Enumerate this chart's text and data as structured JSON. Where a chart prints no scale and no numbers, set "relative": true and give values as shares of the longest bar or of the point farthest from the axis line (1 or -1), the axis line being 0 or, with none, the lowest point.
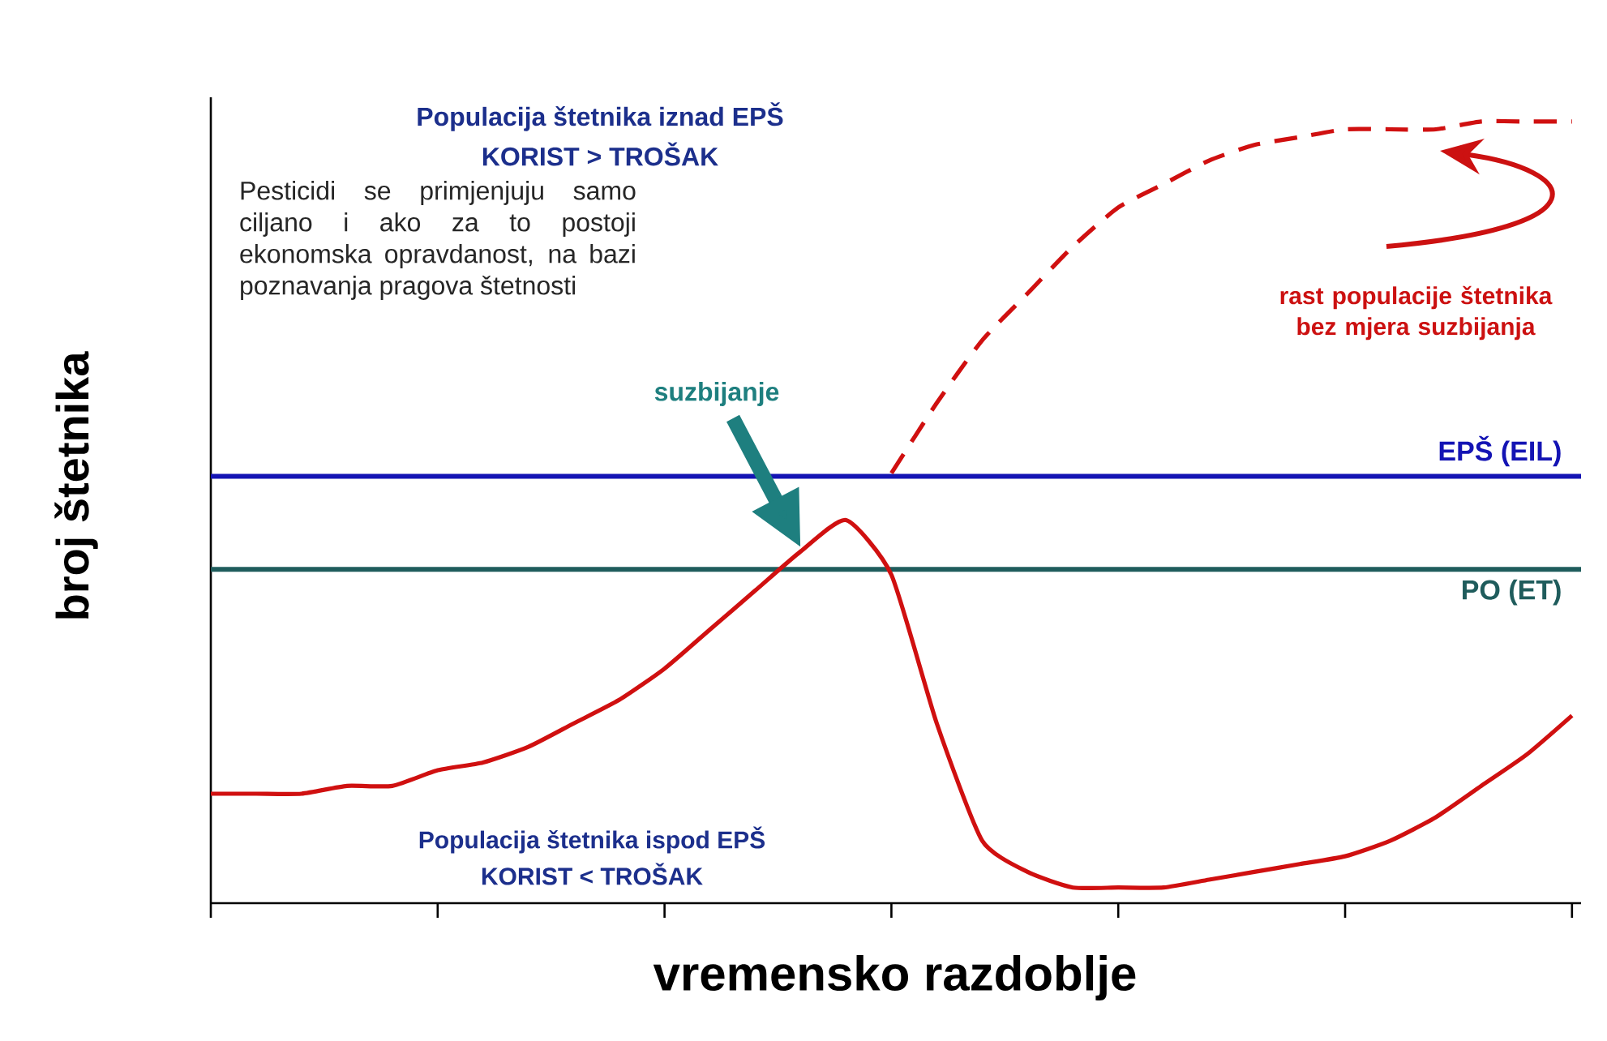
{
  "chart_data": {
    "type": "line",
    "relative": true,
    "xlabel": "vremensko razdoblje",
    "ylabel": "broj štetnika",
    "categories": [
      null,
      null,
      null,
      null,
      null,
      null,
      null,
      null,
      null,
      null,
      null,
      null,
      null,
      null,
      null,
      null,
      null,
      null,
      null,
      null,
      null,
      null,
      null,
      null,
      null,
      null,
      null,
      null,
      null,
      null,
      null
    ],
    "series": [
      {
        "color": "#d01010",
        "line_style": "solid",
        "values": [
          0.14,
          0.14,
          0.14,
          0.15,
          0.15,
          0.17,
          0.18,
          0.2,
          0.23,
          0.26,
          0.3,
          0.35,
          0.4,
          0.45,
          0.49,
          0.42,
          0.23,
          0.08,
          0.04,
          0.02,
          0.02,
          0.02,
          0.03,
          0.04,
          0.05,
          0.06,
          0.08,
          0.11,
          0.15,
          0.19,
          0.24
        ]
      },
      {
        "color": "#d01010",
        "line_style": "dashed",
        "values": [
          null,
          null,
          null,
          null,
          null,
          null,
          null,
          null,
          null,
          null,
          null,
          null,
          null,
          null,
          null,
          0.55,
          0.64,
          0.72,
          0.78,
          0.84,
          0.89,
          0.92,
          0.95,
          0.97,
          0.98,
          0.99,
          0.99,
          0.99,
          1.0,
          1.0,
          1.0
        ]
      }
    ],
    "ref_lines": [
      {
        "axis": "y",
        "value": 0.546,
        "label": "EPŠ (EIL)",
        "color": "#1414b4"
      },
      {
        "axis": "y",
        "value": 0.427,
        "label": "PO (ET)",
        "color": "#1f5c5c"
      }
    ],
    "annotations": [
      "Populacija štetnika iznad EPŠ",
      "KORIST > TROŠAK",
      "Pesticidi se primjenjuju samo ciljano i ako za to postoji ekonomska opravdanost, na bazi poznavanja pragova štetnosti",
      "suzbijanje",
      "rast populacije štetnika bez mjera suzbijanja",
      "Populacija štetnika ispod EPŠ",
      "KORIST < TROŠAK"
    ],
    "marker": "none"
  }
}
